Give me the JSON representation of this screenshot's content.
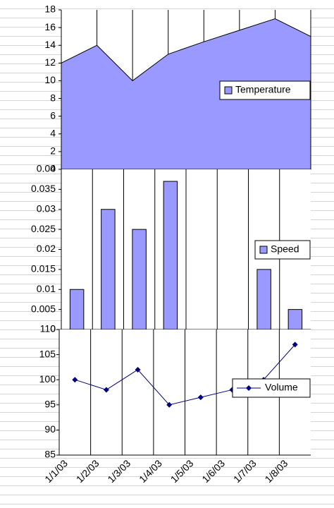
{
  "chart_data": [
    {
      "type": "area",
      "series": [
        {
          "name": "Temperature",
          "color": "#9999ff",
          "values": [
            12,
            14,
            10,
            13,
            14.4,
            15.7,
            17,
            15
          ]
        }
      ],
      "ylim": [
        0,
        18
      ],
      "yticks": [
        0,
        2,
        4,
        6,
        8,
        10,
        12,
        14,
        16,
        18
      ],
      "legend": "right"
    },
    {
      "type": "bar",
      "series": [
        {
          "name": "Speed",
          "color": "#9999ff",
          "values": [
            0.01,
            0.03,
            0.025,
            0.037,
            null,
            null,
            0.015,
            0.005
          ]
        }
      ],
      "ylim": [
        0,
        0.04
      ],
      "yticks": [
        0,
        0.005,
        0.01,
        0.015,
        0.02,
        0.025,
        0.03,
        0.035,
        0.04
      ],
      "legend": "right"
    },
    {
      "type": "line",
      "categories": [
        "1/1/03",
        "1/2/03",
        "1/3/03",
        "1/4/03",
        "1/5/03",
        "1/6/03",
        "1/7/03",
        "1/8/03"
      ],
      "series": [
        {
          "name": "Volume",
          "color": "#000080",
          "values": [
            100,
            98,
            102,
            95,
            96.5,
            98,
            100,
            107
          ]
        }
      ],
      "ylim": [
        85,
        110
      ],
      "yticks": [
        85,
        90,
        95,
        100,
        105,
        110
      ],
      "legend": "right"
    }
  ]
}
